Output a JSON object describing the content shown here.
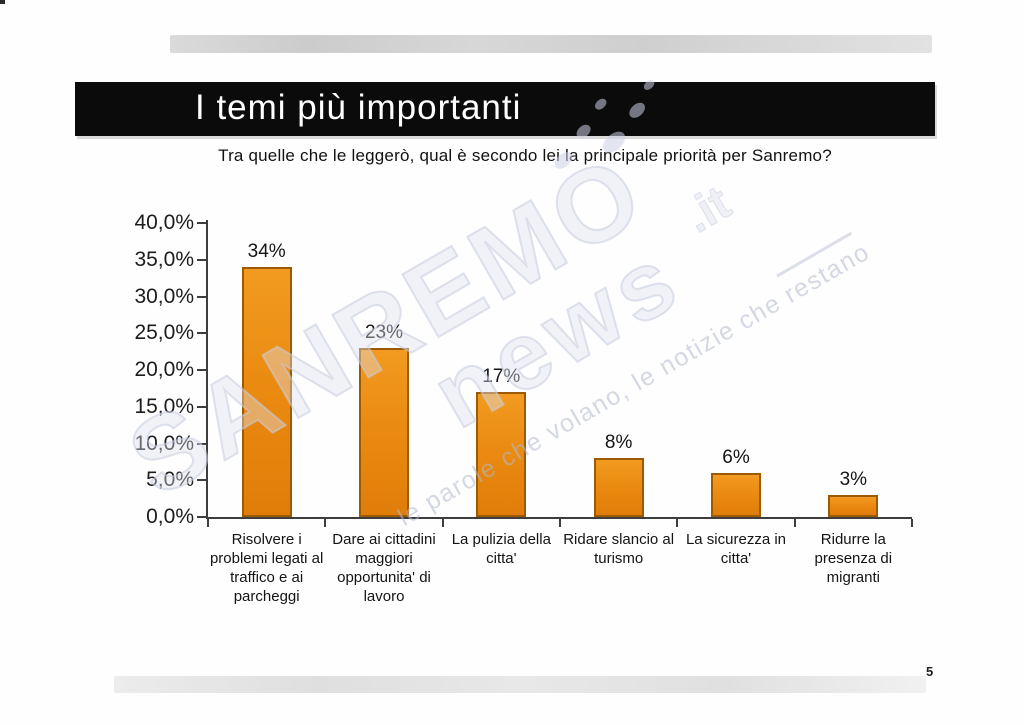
{
  "header": {
    "title": "I temi più importanti",
    "subtitle": "Tra quelle che le leggerò, qual è secondo lei la principale priorità per Sanremo?"
  },
  "watermark": {
    "brand": "SANREMO",
    "brand2": "news",
    "domain": ".it",
    "tagline": "le parole che volano, le notizie che restano"
  },
  "page": {
    "number": "5"
  },
  "chart_data": {
    "type": "bar",
    "title": "I temi più importanti",
    "question": "Tra quelle che le leggerò, qual è secondo lei la principale priorità per Sanremo?",
    "categories": [
      "Risolvere i problemi legati al traffico e ai parcheggi",
      "Dare ai cittadini maggiori opportunita' di lavoro",
      "La pulizia della citta'",
      "Ridare slancio al turismo",
      "La sicurezza in citta'",
      "Ridurre la presenza di migranti"
    ],
    "values": [
      34,
      23,
      17,
      8,
      6,
      3
    ],
    "data_labels": [
      "34%",
      "23%",
      "17%",
      "8%",
      "6%",
      "3%"
    ],
    "y_ticks": [
      "40,0%",
      "35,0%",
      "30,0%",
      "25,0%",
      "20,0%",
      "15,0%",
      "10,0%",
      "5,0%",
      "0,0%"
    ],
    "ylim": [
      0,
      40
    ],
    "y_step": 5,
    "xlabel": "",
    "ylabel": "",
    "grid": false,
    "legend": "none",
    "bar_fill_color": "#ea8a10",
    "bar_border_color": "#9c5a03",
    "axis_color": "#3d3d3d",
    "number_format": "percent-comma-decimal"
  }
}
